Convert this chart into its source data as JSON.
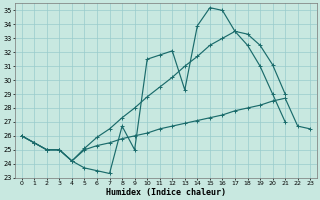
{
  "xlabel": "Humidex (Indice chaleur)",
  "bg_color": "#c8e8e0",
  "line_color": "#1a6b6b",
  "grid_color": "#99cccc",
  "xlim": [
    -0.5,
    23.5
  ],
  "ylim": [
    23,
    35.5
  ],
  "yticks": [
    23,
    24,
    25,
    26,
    27,
    28,
    29,
    30,
    31,
    32,
    33,
    34,
    35
  ],
  "xticks": [
    0,
    1,
    2,
    3,
    4,
    5,
    6,
    7,
    8,
    9,
    10,
    11,
    12,
    13,
    14,
    15,
    16,
    17,
    18,
    19,
    20,
    21,
    22,
    23
  ],
  "c1x": [
    0,
    1,
    2,
    3,
    4,
    5,
    6,
    7,
    8,
    9,
    10,
    11,
    12,
    13,
    14,
    15,
    16,
    17,
    18,
    19,
    20,
    21
  ],
  "c1y": [
    26.0,
    25.5,
    25.0,
    25.0,
    24.2,
    23.7,
    23.5,
    23.3,
    26.7,
    25.0,
    31.5,
    31.8,
    32.1,
    29.3,
    33.9,
    35.2,
    35.0,
    33.5,
    33.3,
    32.5,
    31.1,
    29.0
  ],
  "c2x": [
    0,
    1,
    2,
    3,
    4,
    5,
    6,
    7,
    8,
    9,
    10,
    11,
    12,
    13,
    14,
    15,
    16,
    17,
    18,
    19,
    20,
    21,
    22,
    23
  ],
  "c2y": [
    26.0,
    25.5,
    25.0,
    25.0,
    24.2,
    25.1,
    25.9,
    26.5,
    27.3,
    28.0,
    28.8,
    29.5,
    30.2,
    31.0,
    31.7,
    32.5,
    33.0,
    33.5,
    32.5,
    31.0,
    29.0,
    27.0,
    null,
    null
  ],
  "c3x": [
    0,
    1,
    2,
    3,
    4,
    5,
    6,
    7,
    8,
    9,
    10,
    11,
    12,
    13,
    14,
    15,
    16,
    17,
    18,
    19,
    20,
    21,
    22,
    23
  ],
  "c3y": [
    26.0,
    25.5,
    25.0,
    25.0,
    24.2,
    25.0,
    25.3,
    25.5,
    25.8,
    26.0,
    26.2,
    26.5,
    26.7,
    26.9,
    27.1,
    27.3,
    27.5,
    27.8,
    28.0,
    28.2,
    28.5,
    28.7,
    26.7,
    26.5
  ]
}
